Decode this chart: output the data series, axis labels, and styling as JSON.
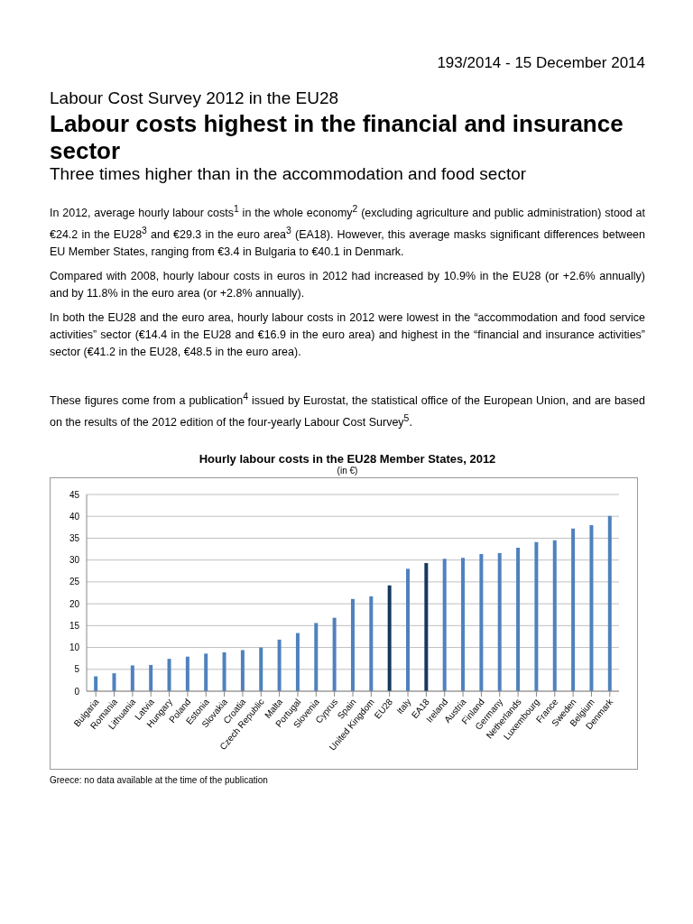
{
  "chart_data": {
    "type": "bar",
    "title": "Hourly labour costs in the EU28 Member States, 2012",
    "subtitle": "(in €)",
    "categories": [
      "Bulgaria",
      "Romania",
      "Lithuania",
      "Latvia",
      "Hungary",
      "Poland",
      "Estonia",
      "Slovakia",
      "Croatia",
      "Czech Republic",
      "Malta",
      "Portugal",
      "Slovenia",
      "Cyprus",
      "Spain",
      "United Kingdom",
      "EU28",
      "Italy",
      "EA18",
      "Ireland",
      "Austria",
      "Finland",
      "Germany",
      "Netherlands",
      "Luxembourg",
      "France",
      "Sweden",
      "Belgium",
      "Denmark"
    ],
    "values": [
      3.4,
      4.1,
      5.9,
      6.0,
      7.4,
      7.9,
      8.6,
      8.9,
      9.4,
      10.0,
      11.8,
      13.3,
      15.6,
      16.8,
      21.1,
      21.7,
      24.2,
      28.0,
      29.3,
      30.3,
      30.5,
      31.4,
      31.6,
      32.8,
      34.1,
      34.5,
      37.2,
      38.0,
      40.1
    ],
    "colors": [
      "#4f81bd",
      "#4f81bd",
      "#4f81bd",
      "#4f81bd",
      "#4f81bd",
      "#4f81bd",
      "#4f81bd",
      "#4f81bd",
      "#4f81bd",
      "#4f81bd",
      "#4f81bd",
      "#4f81bd",
      "#4f81bd",
      "#4f81bd",
      "#4f81bd",
      "#4f81bd",
      "#17375e",
      "#4f81bd",
      "#17375e",
      "#4f81bd",
      "#4f81bd",
      "#4f81bd",
      "#4f81bd",
      "#4f81bd",
      "#4f81bd",
      "#4f81bd",
      "#4f81bd",
      "#4f81bd",
      "#4f81bd"
    ],
    "ylim": [
      0,
      45
    ],
    "yticks": [
      0,
      5,
      10,
      15,
      20,
      25,
      30,
      35,
      40,
      45
    ],
    "grid": "y",
    "annotations": [
      "193/2014  -  15 December 2014",
      "Labour Cost Survey 2012 in the EU28",
      "Labour costs highest in the financial and insurance sector",
      "Three times higher than in the accommodation and food sector",
      "In 2012, average hourly labour costs$^{1}$ in the whole economy$^{2}$ (excluding agriculture and public administration) stood at €24.2 in the EU28$^{3}$ and €29.3 in the euro area$^{3}$ (EA18). However, this average masks significant differences between EU Member States, ranging from €3.4 in Bulgaria to €40.1 in Denmark.",
      "Compared with 2008, hourly labour costs in euros in 2012 had increased by 10.9% in the EU28 (or +2.6% annually) and by 11.8% in the euro area (or +2.8% annually).",
      "In both the EU28 and the euro area, hourly labour costs in 2012 were lowest in the “accommodation and food service activities” sector (€14.4 in the EU28 and €16.9 in the euro area) and highest in the “financial and insurance activities” sector (€41.2 in the EU28, €48.5 in the euro area).",
      "These figures come from a publication$^{4}$ issued by Eurostat, the statistical office of the European Union, and are based on the results of the 2012 edition of the four-yearly Labour Cost Survey$^{5}$.",
      "Greece: no data available at the time of the publication"
    ]
  }
}
